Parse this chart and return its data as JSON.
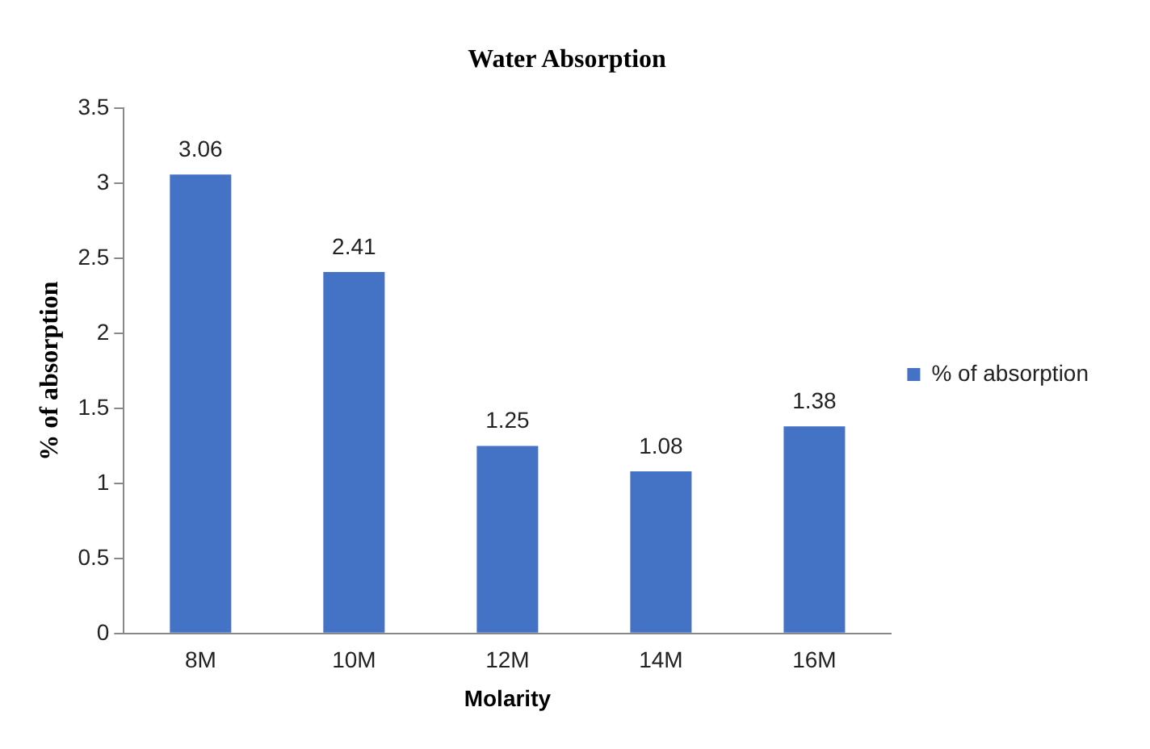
{
  "chart_data": {
    "type": "bar",
    "title": "Water Absorption",
    "xlabel": "Molarity",
    "ylabel": "% of absorption",
    "categories": [
      "8M",
      "10M",
      "12M",
      "14M",
      "16M"
    ],
    "series": [
      {
        "name": "% of absorption",
        "color": "#4472c4",
        "values": [
          3.06,
          2.41,
          1.25,
          1.08,
          1.38
        ]
      }
    ],
    "ylim": [
      0,
      3.5
    ],
    "yticks": [
      0,
      0.5,
      1,
      1.5,
      2,
      2.5,
      3,
      3.5
    ],
    "grid": false,
    "legend": "right",
    "data_labels": true
  }
}
